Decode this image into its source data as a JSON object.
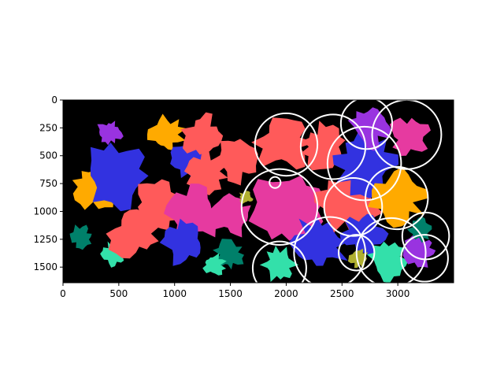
{
  "chart_data": {
    "type": "heatmap",
    "title": "",
    "xlabel": "",
    "ylabel": "",
    "xlim": [
      0,
      3500
    ],
    "ylim": [
      1640,
      0
    ],
    "x_ticks": [
      0,
      500,
      1000,
      1500,
      2000,
      2500,
      3000
    ],
    "x_tick_labels": [
      "0",
      "500",
      "1000",
      "1500",
      "2000",
      "2500",
      "3000"
    ],
    "y_ticks": [
      0,
      250,
      500,
      750,
      1000,
      1250,
      1500
    ],
    "y_tick_labels": [
      "0",
      "250",
      "500",
      "750",
      "1000",
      "1250",
      "1500"
    ],
    "background_color": "#000000",
    "circle_color": "#ffffff",
    "palette": [
      "#3232e0",
      "#ff5a5a",
      "#e63aa0",
      "#ffaa00",
      "#9933e0",
      "#00806a",
      "#33e0aa",
      "#b0b030"
    ],
    "regions": [
      {
        "cx": 290,
        "cy": 780,
        "r": 210,
        "color": "#ffaa00"
      },
      {
        "cx": 470,
        "cy": 680,
        "r": 300,
        "color": "#3232e0"
      },
      {
        "cx": 420,
        "cy": 290,
        "r": 120,
        "color": "#9933e0"
      },
      {
        "cx": 160,
        "cy": 1230,
        "r": 110,
        "color": "#00806a"
      },
      {
        "cx": 450,
        "cy": 1380,
        "r": 110,
        "color": "#33e0aa"
      },
      {
        "cx": 630,
        "cy": 1200,
        "r": 230,
        "color": "#ff5a5a"
      },
      {
        "cx": 850,
        "cy": 960,
        "r": 240,
        "color": "#ff5a5a"
      },
      {
        "cx": 920,
        "cy": 310,
        "r": 170,
        "color": "#ffaa00"
      },
      {
        "cx": 1140,
        "cy": 520,
        "r": 190,
        "color": "#3232e0"
      },
      {
        "cx": 1250,
        "cy": 320,
        "r": 190,
        "color": "#ff5a5a"
      },
      {
        "cx": 1280,
        "cy": 640,
        "r": 190,
        "color": "#ff5a5a"
      },
      {
        "cx": 1180,
        "cy": 1020,
        "r": 260,
        "color": "#e63aa0"
      },
      {
        "cx": 1080,
        "cy": 1280,
        "r": 210,
        "color": "#3232e0"
      },
      {
        "cx": 1560,
        "cy": 540,
        "r": 200,
        "color": "#ff5a5a"
      },
      {
        "cx": 1520,
        "cy": 1050,
        "r": 190,
        "color": "#e63aa0"
      },
      {
        "cx": 1490,
        "cy": 1390,
        "r": 140,
        "color": "#00806a"
      },
      {
        "cx": 1350,
        "cy": 1480,
        "r": 110,
        "color": "#33e0aa"
      },
      {
        "cx": 1640,
        "cy": 870,
        "r": 70,
        "color": "#b0b030"
      },
      {
        "cx": 1980,
        "cy": 380,
        "r": 260,
        "color": "#ff5a5a"
      },
      {
        "cx": 1990,
        "cy": 990,
        "r": 330,
        "color": "#e63aa0"
      },
      {
        "cx": 1930,
        "cy": 1480,
        "r": 160,
        "color": "#33e0aa"
      },
      {
        "cx": 2330,
        "cy": 420,
        "r": 210,
        "color": "#ff5a5a"
      },
      {
        "cx": 2300,
        "cy": 1280,
        "r": 270,
        "color": "#3232e0"
      },
      {
        "cx": 2550,
        "cy": 920,
        "r": 290,
        "color": "#ff5a5a"
      },
      {
        "cx": 2700,
        "cy": 580,
        "r": 290,
        "color": "#3232e0"
      },
      {
        "cx": 2750,
        "cy": 240,
        "r": 190,
        "color": "#9933e0"
      },
      {
        "cx": 3100,
        "cy": 330,
        "r": 180,
        "color": "#e63aa0"
      },
      {
        "cx": 3000,
        "cy": 880,
        "r": 250,
        "color": "#ffaa00"
      },
      {
        "cx": 2700,
        "cy": 1200,
        "r": 200,
        "color": "#3232e0"
      },
      {
        "cx": 2650,
        "cy": 1420,
        "r": 90,
        "color": "#b0b030"
      },
      {
        "cx": 2900,
        "cy": 1440,
        "r": 180,
        "color": "#33e0aa"
      },
      {
        "cx": 3200,
        "cy": 1350,
        "r": 150,
        "color": "#9933e0"
      },
      {
        "cx": 3200,
        "cy": 1160,
        "r": 120,
        "color": "#00806a"
      }
    ],
    "circles": [
      {
        "cx": 2000,
        "cy": 400,
        "r": 280
      },
      {
        "cx": 2420,
        "cy": 420,
        "r": 290
      },
      {
        "cx": 2720,
        "cy": 210,
        "r": 230
      },
      {
        "cx": 3080,
        "cy": 310,
        "r": 310
      },
      {
        "cx": 2700,
        "cy": 570,
        "r": 330
      },
      {
        "cx": 1900,
        "cy": 740,
        "r": 50
      },
      {
        "cx": 1940,
        "cy": 960,
        "r": 340
      },
      {
        "cx": 2600,
        "cy": 960,
        "r": 260
      },
      {
        "cx": 2990,
        "cy": 880,
        "r": 280
      },
      {
        "cx": 2390,
        "cy": 1370,
        "r": 320
      },
      {
        "cx": 2630,
        "cy": 1370,
        "r": 160
      },
      {
        "cx": 1940,
        "cy": 1510,
        "r": 240
      },
      {
        "cx": 2940,
        "cy": 1370,
        "r": 310
      },
      {
        "cx": 3250,
        "cy": 1220,
        "r": 210
      },
      {
        "cx": 3240,
        "cy": 1420,
        "r": 210
      }
    ]
  }
}
